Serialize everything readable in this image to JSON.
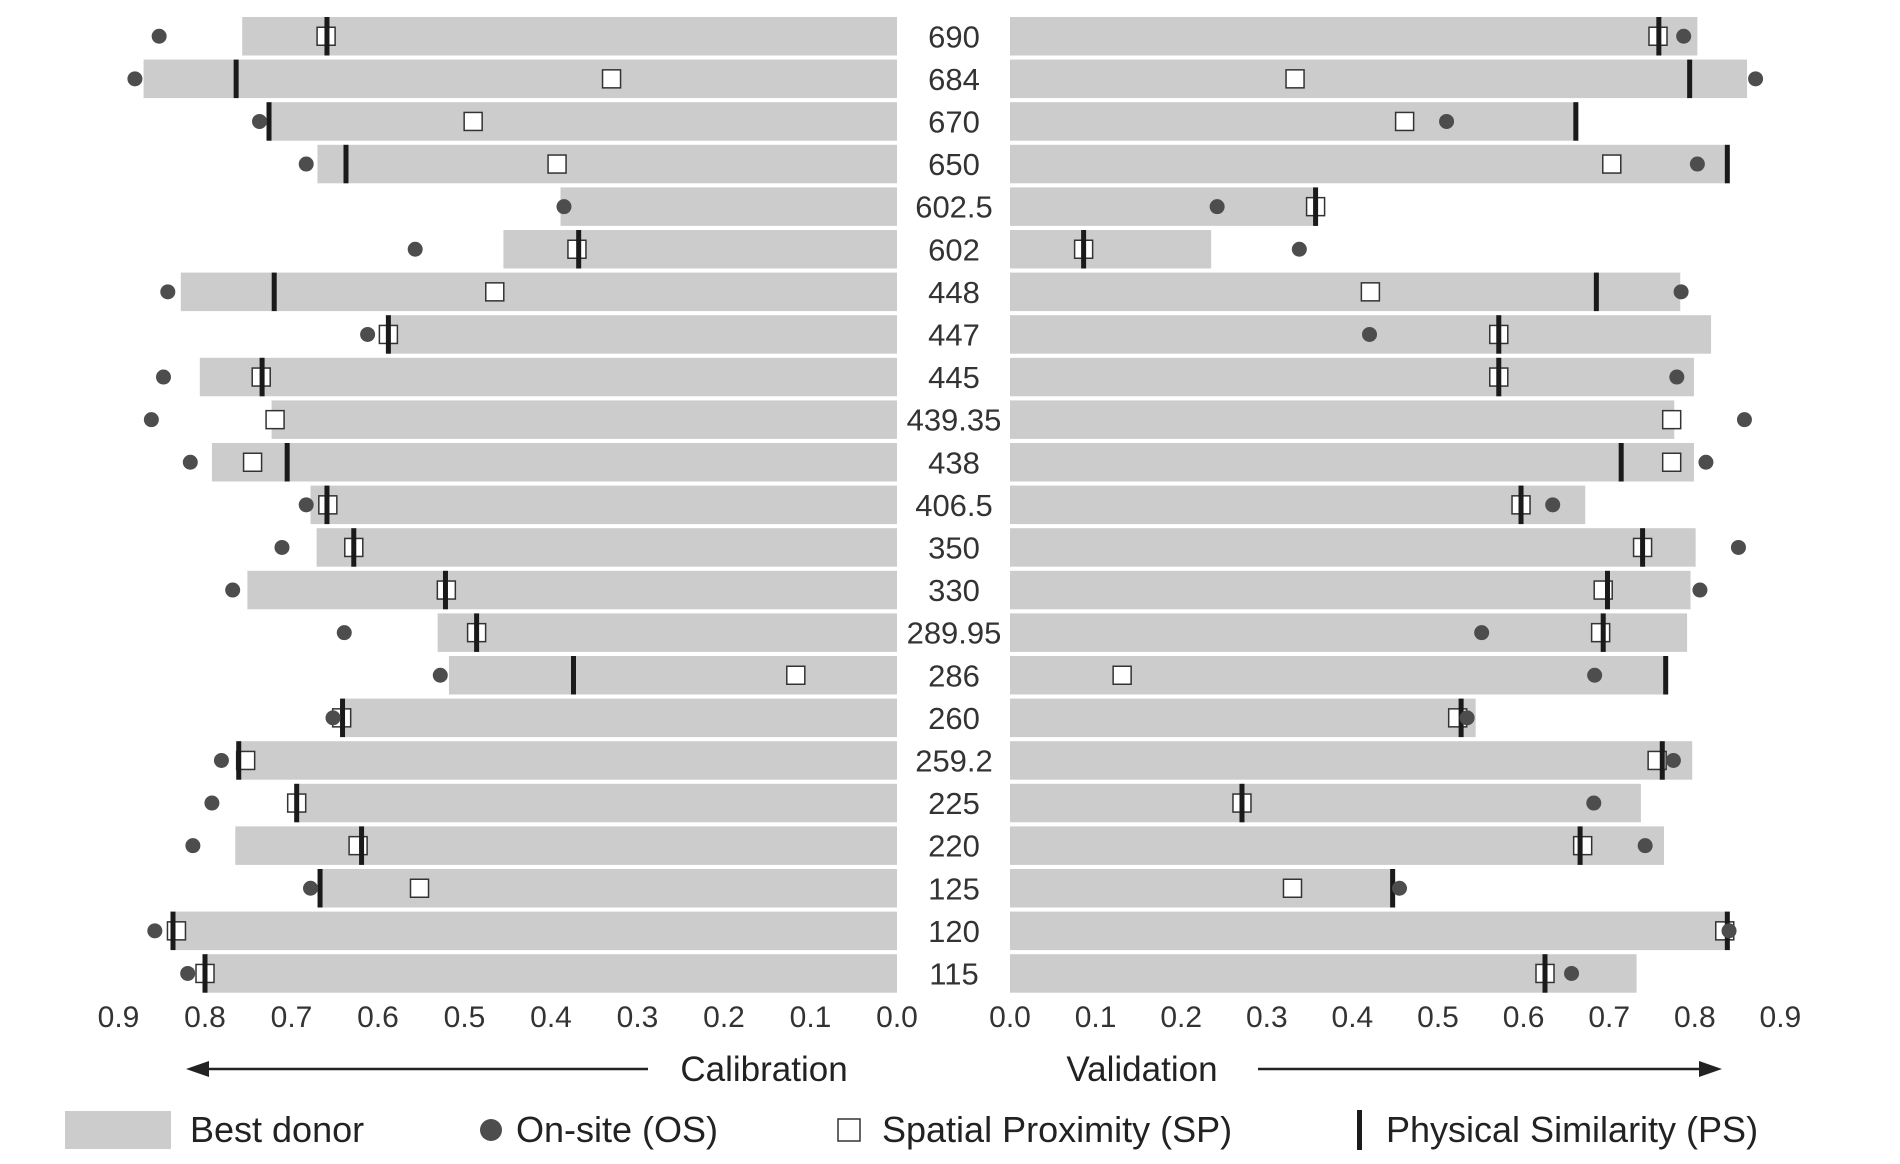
{
  "chart_data": {
    "type": "bar",
    "orientation": "horizontal",
    "layout": "back-to-back",
    "categories": [
      "690",
      "684",
      "670",
      "650",
      "602.5",
      "602",
      "448",
      "447",
      "445",
      "439.35",
      "438",
      "406.5",
      "350",
      "330",
      "289.95",
      "286",
      "260",
      "259.2",
      "225",
      "220",
      "125",
      "120",
      "115"
    ],
    "panels": [
      {
        "name": "Calibration",
        "direction": "left",
        "xlim": [
          0,
          0.9
        ],
        "ticks": [
          "0.9",
          "0.8",
          "0.7",
          "0.6",
          "0.5",
          "0.4",
          "0.3",
          "0.2",
          "0.1",
          "0.0"
        ],
        "series": [
          {
            "name": "Best donor",
            "mark": "bar",
            "values": [
              0.757,
              0.871,
              0.727,
              0.67,
              0.389,
              0.455,
              0.828,
              0.588,
              0.806,
              0.723,
              0.792,
              0.678,
              0.671,
              0.751,
              0.531,
              0.518,
              0.642,
              0.762,
              0.695,
              0.765,
              0.667,
              0.835,
              0.8
            ]
          },
          {
            "name": "On-site (OS)",
            "mark": "dot",
            "values": [
              0.853,
              0.881,
              0.737,
              0.683,
              0.385,
              0.557,
              0.843,
              0.612,
              0.848,
              0.862,
              0.817,
              0.683,
              0.711,
              0.768,
              0.639,
              0.528,
              0.652,
              0.781,
              0.792,
              0.814,
              0.678,
              0.858,
              0.82
            ]
          },
          {
            "name": "Spatial Proximity (SP)",
            "mark": "square",
            "values": [
              0.66,
              0.33,
              0.49,
              0.393,
              null,
              0.37,
              0.465,
              0.588,
              0.735,
              0.719,
              0.745,
              0.658,
              0.628,
              0.521,
              0.486,
              0.117,
              0.642,
              0.753,
              0.694,
              0.623,
              0.552,
              0.833,
              0.8
            ]
          },
          {
            "name": "Physical Similarity (PS)",
            "mark": "tick",
            "values": [
              0.659,
              0.764,
              0.726,
              0.637,
              null,
              0.368,
              0.72,
              0.588,
              0.734,
              null,
              0.705,
              0.659,
              0.628,
              0.522,
              0.486,
              0.374,
              0.641,
              0.761,
              0.694,
              0.619,
              0.667,
              0.837,
              0.8
            ]
          }
        ]
      },
      {
        "name": "Validation",
        "direction": "right",
        "xlim": [
          0,
          0.9
        ],
        "ticks": [
          "0.0",
          "0.1",
          "0.2",
          "0.3",
          "0.4",
          "0.5",
          "0.6",
          "0.7",
          "0.8",
          "0.9"
        ],
        "series": [
          {
            "name": "Best donor",
            "mark": "bar",
            "values": [
              0.803,
              0.861,
              0.664,
              0.837,
              0.356,
              0.235,
              0.783,
              0.819,
              0.799,
              0.776,
              0.799,
              0.672,
              0.801,
              0.795,
              0.791,
              0.766,
              0.544,
              0.797,
              0.737,
              0.764,
              0.45,
              0.837,
              0.732
            ]
          },
          {
            "name": "On-site (OS)",
            "mark": "dot",
            "values": [
              0.787,
              0.871,
              0.51,
              0.803,
              0.242,
              0.338,
              0.784,
              0.42,
              0.779,
              0.858,
              0.813,
              0.634,
              0.851,
              0.806,
              0.551,
              0.683,
              0.534,
              0.775,
              0.682,
              0.742,
              0.455,
              0.84,
              0.656
            ]
          },
          {
            "name": "Spatial Proximity (SP)",
            "mark": "square",
            "values": [
              0.757,
              0.333,
              0.461,
              0.703,
              0.357,
              0.086,
              0.421,
              0.571,
              0.571,
              0.773,
              0.773,
              0.597,
              0.739,
              0.693,
              0.69,
              0.131,
              0.523,
              0.756,
              0.271,
              0.669,
              0.33,
              0.835,
              0.625
            ]
          },
          {
            "name": "Physical Similarity (PS)",
            "mark": "tick",
            "values": [
              0.758,
              0.794,
              0.661,
              0.838,
              0.357,
              0.086,
              0.685,
              0.571,
              0.571,
              null,
              0.714,
              0.597,
              0.739,
              0.698,
              0.693,
              0.766,
              0.527,
              0.762,
              0.271,
              0.666,
              0.447,
              0.838,
              0.625
            ]
          }
        ]
      }
    ],
    "legend": {
      "position": "bottom",
      "items": [
        "Best donor",
        "On-site (OS)",
        "Spatial Proximity (SP)",
        "Physical Similarity (PS)"
      ]
    },
    "grid": false
  },
  "colors": {
    "bar": "#cccccc",
    "dot": "#4d4d4d",
    "tick": "#1a1a1a",
    "square_fill": "#ffffff",
    "square_stroke": "#333333",
    "text": "#333333"
  },
  "labels": {
    "calibration": "Calibration",
    "validation": "Validation"
  }
}
